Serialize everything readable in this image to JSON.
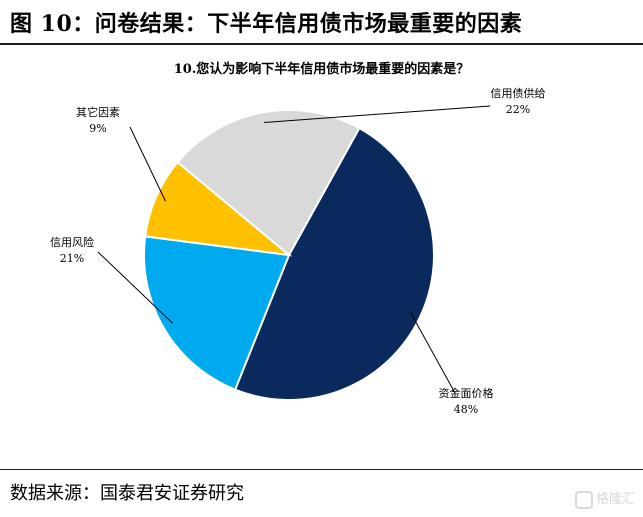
{
  "figure_title": "图 10：问卷结果：下半年信用债市场最重要的因素",
  "source": "数据来源：国泰君安证券研究",
  "watermark": "格隆汇",
  "chart_data": {
    "type": "pie",
    "title": "10.您认为影响下半年信用债市场最重要的因素是？",
    "slices": [
      {
        "name": "资金面价格",
        "value": 48,
        "label": "48%",
        "color": "#0a2a5e"
      },
      {
        "name": "信用风险",
        "value": 21,
        "label": "21%",
        "color": "#00aaee"
      },
      {
        "name": "其它因素",
        "value": 9,
        "label": "9%",
        "color": "#ffc000"
      },
      {
        "name": "信用债供给",
        "value": 22,
        "label": "22%",
        "color": "#d9d9d9"
      }
    ]
  }
}
